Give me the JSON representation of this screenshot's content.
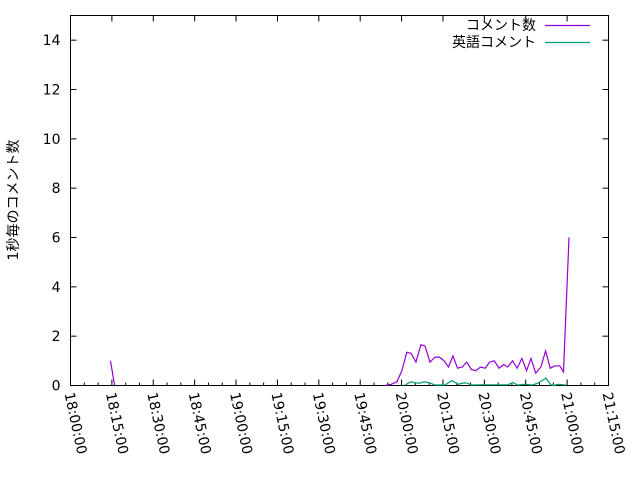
{
  "chart_data": {
    "type": "line",
    "title": "",
    "xlabel": "",
    "ylabel": "1秒毎のコメント数",
    "xlim": [
      "18:00:00",
      "21:15:00"
    ],
    "ylim": [
      0,
      15
    ],
    "x_ticks": [
      "18:00:00",
      "18:15:00",
      "18:30:00",
      "18:45:00",
      "19:00:00",
      "19:15:00",
      "19:30:00",
      "19:45:00",
      "20:00:00",
      "20:15:00",
      "20:30:00",
      "20:45:00",
      "21:00:00",
      "21:15:00"
    ],
    "y_ticks": [
      0,
      2,
      4,
      6,
      8,
      10,
      12,
      14
    ],
    "grid": false,
    "legend_placement": "top-right",
    "series": [
      {
        "name": "コメント数",
        "color": "#9400D3",
        "points": [
          [
            "18:14:30",
            1.0
          ],
          [
            "18:16:00",
            0
          ],
          [
            "19:54:06",
            0
          ],
          [
            "19:56:18",
            0.05
          ],
          [
            "19:58:18",
            0.15
          ],
          [
            "20:00:06",
            0.6
          ],
          [
            "20:01:54",
            1.35
          ],
          [
            "20:03:30",
            1.3
          ],
          [
            "20:05:12",
            0.95
          ],
          [
            "20:07:00",
            1.65
          ],
          [
            "20:08:30",
            1.6
          ],
          [
            "20:10:18",
            0.95
          ],
          [
            "20:12:06",
            1.15
          ],
          [
            "20:13:42",
            1.15
          ],
          [
            "20:15:24",
            1.0
          ],
          [
            "20:17:00",
            0.75
          ],
          [
            "20:18:36",
            1.2
          ],
          [
            "20:20:18",
            0.7
          ],
          [
            "20:22:00",
            0.75
          ],
          [
            "20:23:36",
            0.95
          ],
          [
            "20:25:18",
            0.65
          ],
          [
            "20:26:54",
            0.6
          ],
          [
            "20:28:36",
            0.75
          ],
          [
            "20:30:18",
            0.7
          ],
          [
            "20:31:54",
            0.95
          ],
          [
            "20:33:36",
            1.0
          ],
          [
            "20:35:18",
            0.7
          ],
          [
            "20:37:00",
            0.85
          ],
          [
            "20:38:30",
            0.75
          ],
          [
            "20:40:12",
            1.0
          ],
          [
            "20:41:54",
            0.7
          ],
          [
            "20:43:36",
            1.1
          ],
          [
            "20:45:18",
            0.6
          ],
          [
            "20:46:54",
            1.1
          ],
          [
            "20:48:36",
            0.5
          ],
          [
            "20:50:30",
            0.75
          ],
          [
            "20:52:12",
            1.4
          ],
          [
            "20:53:54",
            0.7
          ],
          [
            "20:55:36",
            0.8
          ],
          [
            "20:57:18",
            0.8
          ],
          [
            "20:58:42",
            0.55
          ],
          [
            "21:00:42",
            6.0
          ]
        ]
      },
      {
        "name": "英語コメント",
        "color": "#009E73",
        "points": [
          [
            "20:01:00",
            0
          ],
          [
            "20:03:18",
            0.15
          ],
          [
            "20:05:12",
            0.1
          ],
          [
            "20:06:42",
            0.1
          ],
          [
            "20:08:18",
            0.15
          ],
          [
            "20:10:18",
            0.1
          ],
          [
            "20:12:06",
            0.02
          ],
          [
            "20:15:42",
            0.02
          ],
          [
            "20:18:18",
            0.2
          ],
          [
            "20:20:30",
            0.05
          ],
          [
            "20:22:18",
            0.1
          ],
          [
            "20:23:36",
            0.1
          ],
          [
            "20:25:18",
            0.02
          ],
          [
            "20:30:06",
            0.03
          ],
          [
            "20:36:06",
            0.03
          ],
          [
            "20:38:30",
            0.03
          ],
          [
            "20:40:24",
            0.12
          ],
          [
            "20:42:06",
            0.02
          ],
          [
            "20:44:30",
            0.05
          ],
          [
            "20:47:30",
            0.02
          ],
          [
            "20:49:30",
            0.1
          ],
          [
            "20:52:18",
            0.3
          ],
          [
            "20:54:06",
            0.03
          ],
          [
            "20:55:18",
            0
          ],
          [
            "20:56:30",
            0.05
          ],
          [
            "20:59:30",
            0.02
          ]
        ]
      }
    ]
  }
}
